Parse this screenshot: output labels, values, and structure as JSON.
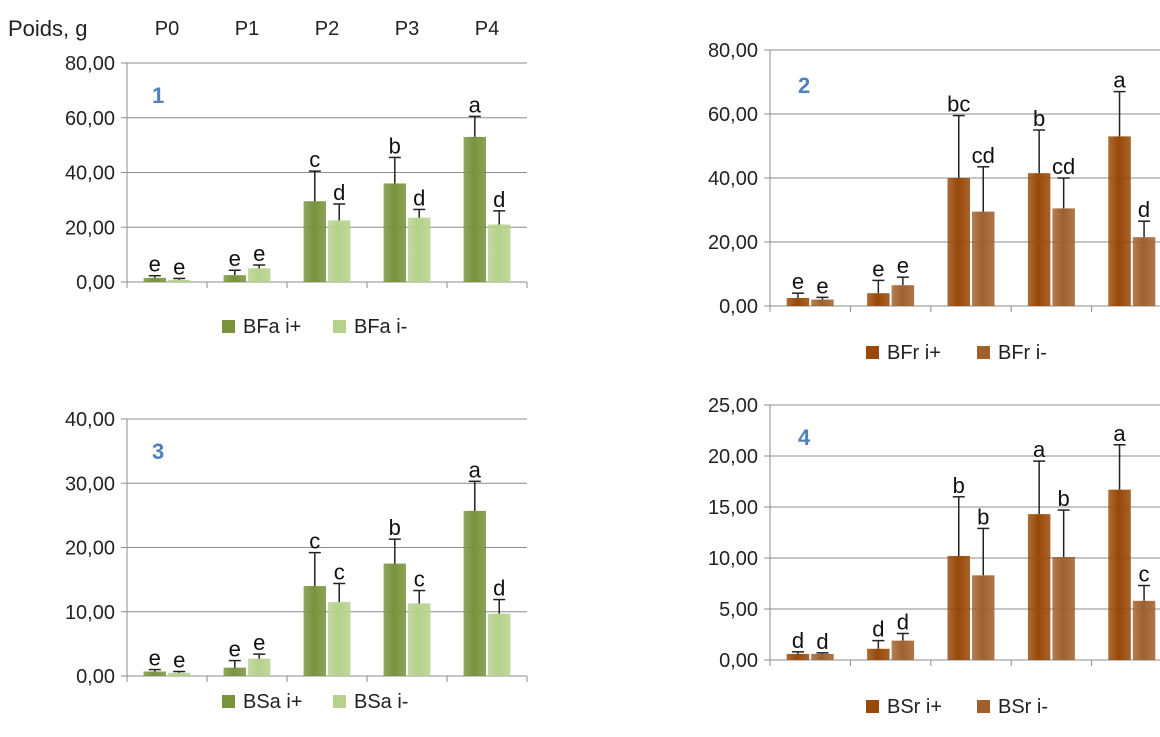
{
  "figure": {
    "y_unit_label": "Poids, g"
  },
  "chart_data": [
    {
      "type": "bar",
      "panel_label": "1",
      "categories": [
        "P0",
        "P1",
        "P2",
        "P3",
        "P4"
      ],
      "categories_shown": true,
      "ylim": [
        0,
        80
      ],
      "yticks": [
        "0,00",
        "20,00",
        "40,00",
        "60,00",
        "80,00"
      ],
      "grid": true,
      "legend_position": "bottom",
      "series": [
        {
          "name": "BFa i+",
          "color": "#77933c",
          "values": [
            1.5,
            2.5,
            29.5,
            36,
            53
          ],
          "errors": [
            0.8,
            1.8,
            11,
            9.5,
            7.5
          ],
          "letters": [
            "e",
            "e",
            "c",
            "b",
            "a"
          ]
        },
        {
          "name": "BFa i-",
          "color": "#b5d18c",
          "values": [
            0.8,
            5,
            22.5,
            23.5,
            21
          ],
          "errors": [
            0.5,
            1.2,
            6,
            3,
            5
          ],
          "letters": [
            "e",
            "e",
            "d",
            "d",
            "d"
          ]
        }
      ]
    },
    {
      "type": "bar",
      "panel_label": "2",
      "categories": [
        "P0",
        "P1",
        "P2",
        "P3",
        "P4"
      ],
      "categories_shown": false,
      "ylim": [
        0,
        80
      ],
      "yticks": [
        "0,00",
        "20,00",
        "40,00",
        "60,00",
        "80,00"
      ],
      "grid": true,
      "legend_position": "bottom",
      "series": [
        {
          "name": "BFr i+",
          "color": "#984807",
          "values": [
            2.5,
            4,
            40,
            41.5,
            53
          ],
          "errors": [
            1.5,
            4,
            19.5,
            13.5,
            14
          ],
          "letters": [
            "e",
            "e",
            "bc",
            "b",
            "a"
          ]
        },
        {
          "name": "BFr i-",
          "color": "#a0602c",
          "values": [
            2,
            6.5,
            29.5,
            30.5,
            21.5
          ],
          "errors": [
            0.7,
            2.5,
            14,
            9.5,
            5
          ],
          "letters": [
            "e",
            "e",
            "cd",
            "cd",
            "d"
          ]
        }
      ]
    },
    {
      "type": "bar",
      "panel_label": "3",
      "categories": [
        "P0",
        "P1",
        "P2",
        "P3",
        "P4"
      ],
      "categories_shown": false,
      "ylim": [
        0,
        40
      ],
      "yticks": [
        "0,00",
        "10,00",
        "20,00",
        "30,00",
        "40,00"
      ],
      "grid": true,
      "legend_position": "bottom",
      "series": [
        {
          "name": "BSa i+",
          "color": "#77933c",
          "values": [
            0.7,
            1.3,
            14,
            17.5,
            25.7
          ],
          "errors": [
            0.3,
            1.1,
            5.2,
            3.8,
            4.6
          ],
          "letters": [
            "e",
            "e",
            "c",
            "b",
            "a"
          ]
        },
        {
          "name": "BSa i-",
          "color": "#b5d18c",
          "values": [
            0.5,
            2.7,
            11.5,
            11.3,
            9.7
          ],
          "errors": [
            0.2,
            0.7,
            2.9,
            2,
            2.2
          ],
          "letters": [
            "e",
            "e",
            "c",
            "c",
            "d"
          ]
        }
      ]
    },
    {
      "type": "bar",
      "panel_label": "4",
      "categories": [
        "P0",
        "P1",
        "P2",
        "P3",
        "P4"
      ],
      "categories_shown": false,
      "ylim": [
        0,
        25
      ],
      "yticks": [
        "0,00",
        "5,00",
        "10,00",
        "15,00",
        "20,00",
        "25,00"
      ],
      "grid": true,
      "legend_position": "bottom",
      "series": [
        {
          "name": "BSr i+",
          "color": "#984807",
          "values": [
            0.6,
            1.1,
            10.2,
            14.3,
            16.7
          ],
          "errors": [
            0.2,
            0.8,
            5.8,
            5.2,
            4.4
          ],
          "letters": [
            "d",
            "d",
            "b",
            "a",
            "a"
          ]
        },
        {
          "name": "BSr i-",
          "color": "#a0602c",
          "values": [
            0.6,
            1.9,
            8.3,
            10.1,
            5.8
          ],
          "errors": [
            0.1,
            0.7,
            4.6,
            4.6,
            1.5
          ],
          "letters": [
            "d",
            "d",
            "b",
            "b",
            "c"
          ]
        }
      ]
    }
  ]
}
